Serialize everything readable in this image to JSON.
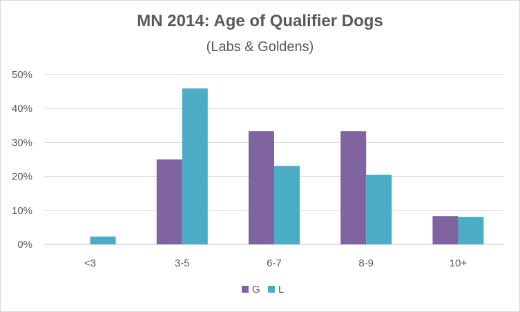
{
  "chart_data": {
    "type": "bar",
    "title": "MN 2014: Age of Qualifier Dogs",
    "subtitle": "(Labs & Goldens)",
    "categories": [
      "<3",
      "3-5",
      "6-7",
      "8-9",
      "10+"
    ],
    "series": [
      {
        "name": "G",
        "values": [
          0,
          25,
          33.3,
          33.3,
          8.3
        ],
        "color": "#8064a2"
      },
      {
        "name": "L",
        "values": [
          2.3,
          45.9,
          23.1,
          20.5,
          8.1
        ],
        "color": "#4bacc6"
      }
    ],
    "ylim": [
      0,
      50
    ],
    "yticks": [
      "0%",
      "10%",
      "20%",
      "30%",
      "40%",
      "50%"
    ],
    "ytick_values": [
      0,
      10,
      20,
      30,
      40,
      50
    ],
    "xlabel": "",
    "ylabel": "",
    "grid": true,
    "legend_position": "bottom"
  }
}
